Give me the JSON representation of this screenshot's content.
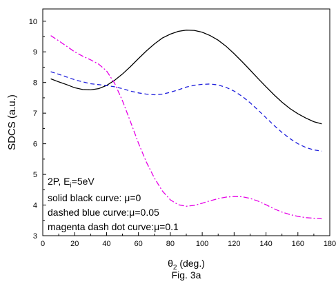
{
  "chart_data": {
    "type": "line",
    "xlabel_main": "θ",
    "xlabel_sub": "2",
    "xlabel_tail": " (deg.)",
    "ylabel": "SDCS (a.u.)",
    "caption": "Fig. 3a",
    "xlim": [
      0,
      180
    ],
    "ylim": [
      3,
      10.4
    ],
    "xticks": [
      0,
      20,
      40,
      60,
      80,
      100,
      120,
      140,
      160,
      180
    ],
    "yticks": [
      3,
      4,
      5,
      6,
      7,
      8,
      9,
      10
    ],
    "grid": false,
    "annotations": {
      "line1_main": "2P, E",
      "line1_sub": "i",
      "line1_tail": "=5eV",
      "line2": "solid black curve: μ=0",
      "line3": "dashed blue curve:μ=0.05",
      "line4": "magenta dash dot curve:μ=0.1"
    },
    "series": [
      {
        "style": "solid",
        "color": "#000000",
        "x": [
          5,
          10,
          15,
          20,
          25,
          30,
          35,
          40,
          45,
          50,
          55,
          60,
          65,
          70,
          75,
          80,
          85,
          90,
          95,
          100,
          105,
          110,
          115,
          120,
          125,
          130,
          135,
          140,
          145,
          150,
          155,
          160,
          165,
          170,
          175
        ],
        "y": [
          8.12,
          8.02,
          7.93,
          7.83,
          7.77,
          7.76,
          7.8,
          7.9,
          8.07,
          8.28,
          8.52,
          8.78,
          9.03,
          9.26,
          9.45,
          9.58,
          9.67,
          9.71,
          9.7,
          9.64,
          9.53,
          9.38,
          9.18,
          8.94,
          8.68,
          8.41,
          8.13,
          7.86,
          7.6,
          7.36,
          7.15,
          6.98,
          6.84,
          6.72,
          6.65
        ]
      },
      {
        "style": "dashed",
        "color": "#1f1fdc",
        "x": [
          5,
          10,
          15,
          20,
          25,
          30,
          35,
          40,
          45,
          50,
          55,
          60,
          65,
          70,
          75,
          80,
          85,
          90,
          95,
          100,
          105,
          110,
          115,
          120,
          125,
          130,
          135,
          140,
          145,
          150,
          155,
          160,
          165,
          170,
          175
        ],
        "y": [
          8.35,
          8.27,
          8.18,
          8.09,
          8.02,
          7.96,
          7.93,
          7.9,
          7.86,
          7.8,
          7.72,
          7.66,
          7.62,
          7.6,
          7.62,
          7.68,
          7.76,
          7.85,
          7.91,
          7.94,
          7.95,
          7.92,
          7.84,
          7.72,
          7.55,
          7.34,
          7.1,
          6.85,
          6.6,
          6.37,
          6.17,
          6.0,
          5.88,
          5.8,
          5.76
        ]
      },
      {
        "style": "dashdot",
        "color": "#e600e6",
        "x": [
          5,
          10,
          15,
          20,
          25,
          30,
          35,
          40,
          45,
          50,
          55,
          60,
          65,
          70,
          75,
          80,
          85,
          90,
          95,
          100,
          105,
          110,
          115,
          120,
          125,
          130,
          135,
          140,
          145,
          150,
          155,
          160,
          165,
          170,
          175
        ],
        "y": [
          9.53,
          9.36,
          9.18,
          9.0,
          8.86,
          8.74,
          8.6,
          8.38,
          7.98,
          7.4,
          6.72,
          6.02,
          5.4,
          4.88,
          4.46,
          4.17,
          4.01,
          3.96,
          3.99,
          4.06,
          4.14,
          4.21,
          4.26,
          4.28,
          4.27,
          4.22,
          4.13,
          4.01,
          3.88,
          3.77,
          3.69,
          3.63,
          3.59,
          3.57,
          3.55
        ]
      }
    ]
  }
}
